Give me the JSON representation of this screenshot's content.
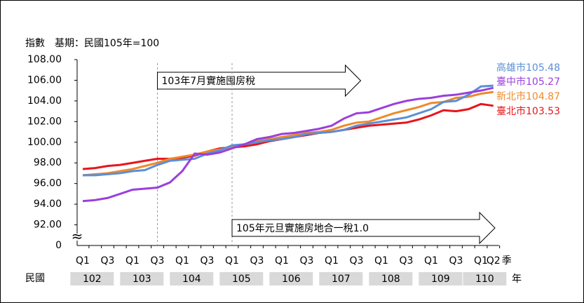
{
  "chart_data": {
    "type": "line",
    "y_title": "指數　基期：民國105年=100",
    "ylim": [
      90,
      108
    ],
    "yticks": [
      {
        "value": 92,
        "label": "92.00"
      },
      {
        "value": 94,
        "label": "94.00"
      },
      {
        "value": 96,
        "label": "96.00"
      },
      {
        "value": 98,
        "label": "98.00"
      },
      {
        "value": 100,
        "label": "100.00"
      },
      {
        "value": 102,
        "label": "102.00"
      },
      {
        "value": 104,
        "label": "104.00"
      },
      {
        "value": 106,
        "label": "106.00"
      },
      {
        "value": 108,
        "label": "108.00"
      }
    ],
    "axis_origin_label": "0",
    "axis_break_symbol": "≈",
    "categories": [
      "Q1",
      null,
      "Q3",
      null,
      "Q1",
      null,
      "Q3",
      null,
      "Q1",
      null,
      "Q3",
      null,
      "Q1",
      null,
      "Q3",
      null,
      "Q1",
      null,
      "Q3",
      null,
      "Q1",
      null,
      "Q3",
      null,
      "Q1",
      null,
      "Q3",
      null,
      "Q1",
      null,
      "Q3",
      null,
      "Q1",
      "Q2"
    ],
    "x_unit": "季",
    "year_prefix": "民國",
    "year_groups": [
      "102",
      "103",
      "104",
      "105",
      "106",
      "107",
      "108",
      "109",
      "110"
    ],
    "year_unit": "年",
    "annotations": [
      "103年7月實施囤房稅",
      "105年元旦實施房地合一稅1.0"
    ],
    "series": [
      {
        "name": "高雄市",
        "color": "#5b8fd6",
        "values": [
          96.8,
          96.8,
          96.9,
          97.0,
          97.2,
          97.3,
          97.8,
          98.2,
          98.3,
          98.4,
          98.9,
          99.2,
          99.7,
          99.8,
          100.0,
          100.2,
          100.3,
          100.5,
          100.8,
          100.9,
          101.0,
          101.2,
          101.6,
          101.8,
          102.0,
          102.2,
          102.4,
          102.8,
          103.2,
          103.9,
          104.0,
          104.6,
          105.4,
          105.48
        ]
      },
      {
        "name": "臺中市",
        "color": "#9b3fdc",
        "values": [
          94.3,
          94.4,
          94.6,
          95.0,
          95.4,
          95.5,
          95.6,
          96.1,
          97.2,
          98.9,
          98.8,
          99.0,
          99.4,
          99.8,
          100.3,
          100.5,
          100.8,
          100.9,
          101.1,
          101.3,
          101.6,
          102.3,
          102.8,
          102.9,
          103.3,
          103.7,
          104.0,
          104.2,
          104.3,
          104.5,
          104.6,
          104.8,
          105.0,
          105.27
        ]
      },
      {
        "name": "新北市",
        "color": "#ee8a2a",
        "values": [
          96.8,
          96.9,
          97.0,
          97.2,
          97.4,
          97.7,
          98.0,
          98.4,
          98.6,
          98.8,
          99.1,
          99.3,
          99.5,
          99.8,
          100.1,
          100.3,
          100.5,
          100.7,
          100.9,
          101.0,
          101.2,
          101.6,
          101.9,
          102.0,
          102.4,
          102.8,
          103.1,
          103.4,
          103.8,
          103.9,
          104.3,
          104.4,
          104.7,
          104.87
        ]
      },
      {
        "name": "臺北市",
        "color": "#e8141b",
        "values": [
          97.4,
          97.5,
          97.7,
          97.8,
          98.0,
          98.2,
          98.4,
          98.4,
          98.5,
          98.7,
          99.1,
          99.4,
          99.5,
          99.6,
          99.8,
          100.1,
          100.3,
          100.5,
          100.7,
          100.9,
          101.0,
          101.2,
          101.4,
          101.6,
          101.7,
          101.8,
          101.9,
          102.2,
          102.6,
          103.1,
          103.0,
          103.2,
          103.7,
          103.53
        ]
      }
    ]
  }
}
